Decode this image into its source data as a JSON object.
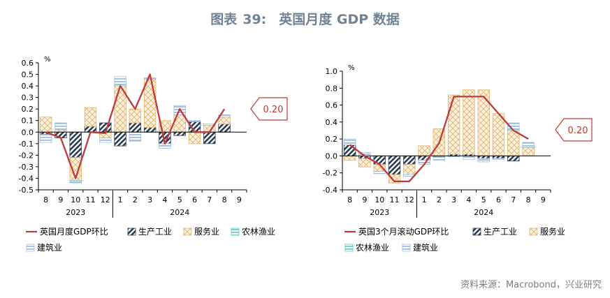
{
  "title": {
    "prefix": "图表",
    "number": "39:",
    "text": "英国月度 GDP 数据"
  },
  "source": "资料来源：Macrobond，兴业研究",
  "colors": {
    "line": "#c0393b",
    "industry": "#2c3e55",
    "services": "#e2b46a",
    "agriculture": "#52c8c6",
    "construction": "#9cbde0"
  },
  "chart_data": [
    {
      "type": "bar",
      "stacked": true,
      "unit": "%",
      "categories": [
        "8",
        "9",
        "10",
        "11",
        "12",
        "1",
        "2",
        "3",
        "4",
        "5",
        "6",
        "7",
        "8",
        "9"
      ],
      "year_labels": [
        "2023",
        "2024"
      ],
      "ylim": [
        -0.5,
        0.6
      ],
      "yticks": [
        "0.6",
        "0.5",
        "0.4",
        "0.3",
        "0.2",
        "0.1",
        "0.0",
        "-0.1",
        "-0.2",
        "-0.3",
        "-0.4",
        "-0.5"
      ],
      "series": [
        {
          "name": "英国月度GDP环比",
          "kind": "line",
          "values": [
            0.0,
            -0.05,
            -0.4,
            0.0,
            -0.01,
            0.4,
            0.2,
            0.5,
            -0.1,
            0.2,
            0.0,
            0.0,
            0.2,
            null
          ]
        },
        {
          "name": "生产工业",
          "kind": "bar",
          "values": [
            -0.02,
            -0.05,
            -0.22,
            0.05,
            0.08,
            -0.12,
            0.08,
            0.04,
            -0.1,
            -0.03,
            0.09,
            -0.1,
            0.07,
            null
          ]
        },
        {
          "name": "服务业",
          "kind": "bar",
          "values": [
            0.13,
            0.02,
            -0.2,
            0.16,
            -0.05,
            0.4,
            0.12,
            0.42,
            0.1,
            0.15,
            -0.1,
            0.06,
            0.06,
            null
          ]
        },
        {
          "name": "农林渔业",
          "kind": "bar",
          "values": [
            0.0,
            0.0,
            -0.01,
            0.0,
            0.0,
            0.01,
            0.0,
            0.0,
            0.0,
            0.0,
            0.0,
            0.0,
            0.0,
            null
          ]
        },
        {
          "name": "建筑业",
          "kind": "bar",
          "values": [
            -0.07,
            0.06,
            -0.01,
            0.0,
            -0.04,
            0.07,
            -0.08,
            0.01,
            -0.04,
            0.08,
            0.01,
            0.01,
            0.02,
            null
          ]
        }
      ],
      "callout": "0.20"
    },
    {
      "type": "bar",
      "stacked": true,
      "unit": "%",
      "categories": [
        "8",
        "9",
        "10",
        "11",
        "12",
        "1",
        "2",
        "3",
        "4",
        "5",
        "6",
        "7",
        "8",
        "9"
      ],
      "year_labels": [
        "2023",
        "2024"
      ],
      "ylim": [
        -0.4,
        1.0
      ],
      "yticks": [
        "1.0",
        "0.8",
        "0.6",
        "0.4",
        "0.2",
        "0.0",
        "-0.2",
        "-0.4"
      ],
      "series": [
        {
          "name": "英国3个月滚动GDP环比",
          "kind": "line",
          "values": [
            0.13,
            0.0,
            -0.1,
            -0.3,
            -0.3,
            -0.1,
            0.15,
            0.7,
            0.7,
            0.7,
            0.5,
            0.3,
            0.2,
            null
          ]
        },
        {
          "name": "生产工业",
          "kind": "bar",
          "values": [
            0.13,
            -0.03,
            -0.1,
            -0.22,
            -0.1,
            -0.05,
            -0.01,
            0.02,
            0.02,
            -0.03,
            -0.03,
            -0.06,
            0.0,
            null
          ]
        },
        {
          "name": "服务业",
          "kind": "bar",
          "values": [
            -0.05,
            -0.1,
            -0.08,
            -0.1,
            -0.12,
            0.12,
            0.32,
            0.7,
            0.76,
            0.78,
            0.5,
            0.3,
            0.1,
            null
          ]
        },
        {
          "name": "农林渔业",
          "kind": "bar",
          "values": [
            0.0,
            0.0,
            0.0,
            0.0,
            0.0,
            0.0,
            0.0,
            0.0,
            0.0,
            0.0,
            0.0,
            0.02,
            0.02,
            null
          ]
        },
        {
          "name": "建筑业",
          "kind": "bar",
          "values": [
            0.07,
            0.04,
            -0.03,
            0.0,
            -0.02,
            -0.05,
            -0.04,
            -0.01,
            -0.04,
            -0.04,
            -0.01,
            0.07,
            0.04,
            null
          ]
        }
      ],
      "callout": "0.20"
    }
  ]
}
